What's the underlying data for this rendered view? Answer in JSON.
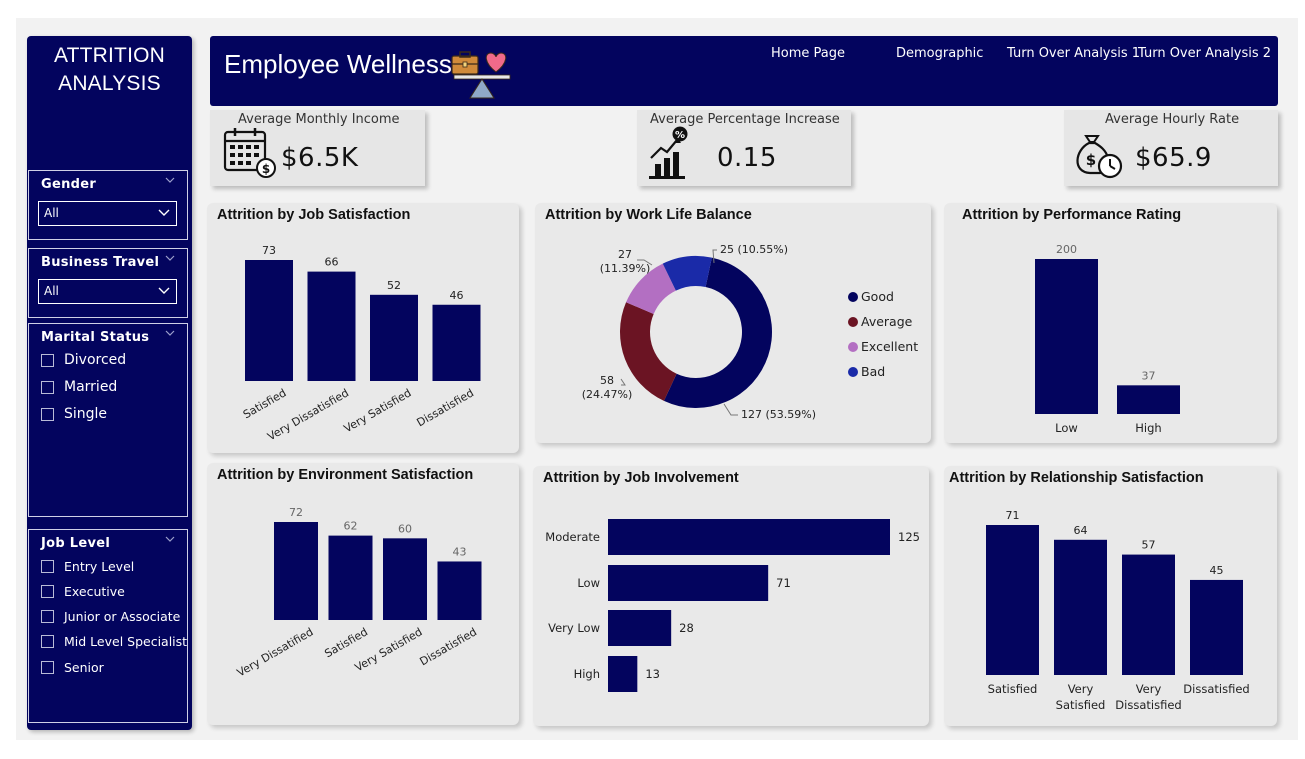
{
  "sidebar": {
    "title": "ATTRITION\nANALYSIS",
    "gender": {
      "label": "Gender",
      "value": "All"
    },
    "business_travel": {
      "label": "Business Travel",
      "value": "All"
    },
    "marital_status": {
      "label": "Marital Status",
      "options": [
        "Divorced",
        "Married",
        "Single"
      ]
    },
    "job_level": {
      "label": "Job Level",
      "options": [
        "Entry Level",
        "Executive",
        "Junior or Associate",
        "Mid Level Specialist",
        "Senior"
      ]
    }
  },
  "header": {
    "title": "Employee Wellness",
    "nav": [
      "Home Page",
      "Demographic",
      "Turn Over Analysis 1",
      "Turn Over Analysis 2"
    ]
  },
  "kpis": {
    "income": {
      "label": "Average Monthly Income",
      "value": "$6.5K",
      "icon": "calendar-money-icon"
    },
    "increase": {
      "label": "Average Percentage Increase",
      "value": "0.15",
      "icon": "percentage-chart-icon"
    },
    "hourly": {
      "label": "Average Hourly Rate",
      "value": "$65.9",
      "icon": "money-bag-clock-icon"
    }
  },
  "colors": {
    "navy": "#03045e",
    "maroon": "#6b1423",
    "lavender": "#b36fc2",
    "blue": "#1a2aa8"
  },
  "chart_data": [
    {
      "id": "job_satisfaction",
      "type": "bar",
      "title": "Attrition by Job Satisfaction",
      "categories": [
        "Satisfied",
        "Very Dissatisfied",
        "Very Satisfied",
        "Dissatisfied"
      ],
      "values": [
        73,
        66,
        52,
        46
      ],
      "data_labels": [
        "73",
        "66",
        "52",
        "46"
      ],
      "label_rotation": "rotated"
    },
    {
      "id": "work_life_balance",
      "type": "pie",
      "title": "Attrition by Work Life Balance",
      "categories": [
        "Good",
        "Average",
        "Excellent",
        "Bad"
      ],
      "values": [
        127,
        58,
        27,
        25
      ],
      "data_labels": [
        "127 (53.59%)",
        "58\n(24.47%)",
        "27\n(11.39%)",
        "25 (10.55%)"
      ],
      "colors": [
        "#03045e",
        "#6b1423",
        "#b36fc2",
        "#1a2aa8"
      ],
      "legend": "right",
      "donut": true
    },
    {
      "id": "performance_rating",
      "type": "bar",
      "title": "Attrition by Performance Rating",
      "categories": [
        "Low",
        "High"
      ],
      "values": [
        200,
        37
      ],
      "data_labels": [
        "200",
        "37"
      ]
    },
    {
      "id": "environment_satisfaction",
      "type": "bar",
      "title": "Attrition by Environment Satisfaction",
      "categories": [
        "Very Dissatified",
        "Satisfied",
        "Very Satisfied",
        "Dissatisfied"
      ],
      "values": [
        72,
        62,
        60,
        43
      ],
      "data_labels": [
        "72",
        "62",
        "60",
        "43"
      ],
      "label_rotation": "rotated"
    },
    {
      "id": "job_involvement",
      "type": "bar",
      "orientation": "horizontal",
      "title": "Attrition by Job Involvement",
      "categories": [
        "Moderate",
        "Low",
        "Very Low",
        "High"
      ],
      "values": [
        125,
        71,
        28,
        13
      ],
      "data_labels": [
        "125",
        "71",
        "28",
        "13"
      ]
    },
    {
      "id": "relationship_satisfaction",
      "type": "bar",
      "title": "Attrition by Relationship Satisfaction",
      "categories": [
        "Satisfied",
        "Very\nSatisfied",
        "Very\nDissatisfied",
        "Dissatisfied"
      ],
      "values": [
        71,
        64,
        57,
        45
      ],
      "data_labels": [
        "71",
        "64",
        "57",
        "45"
      ]
    }
  ]
}
